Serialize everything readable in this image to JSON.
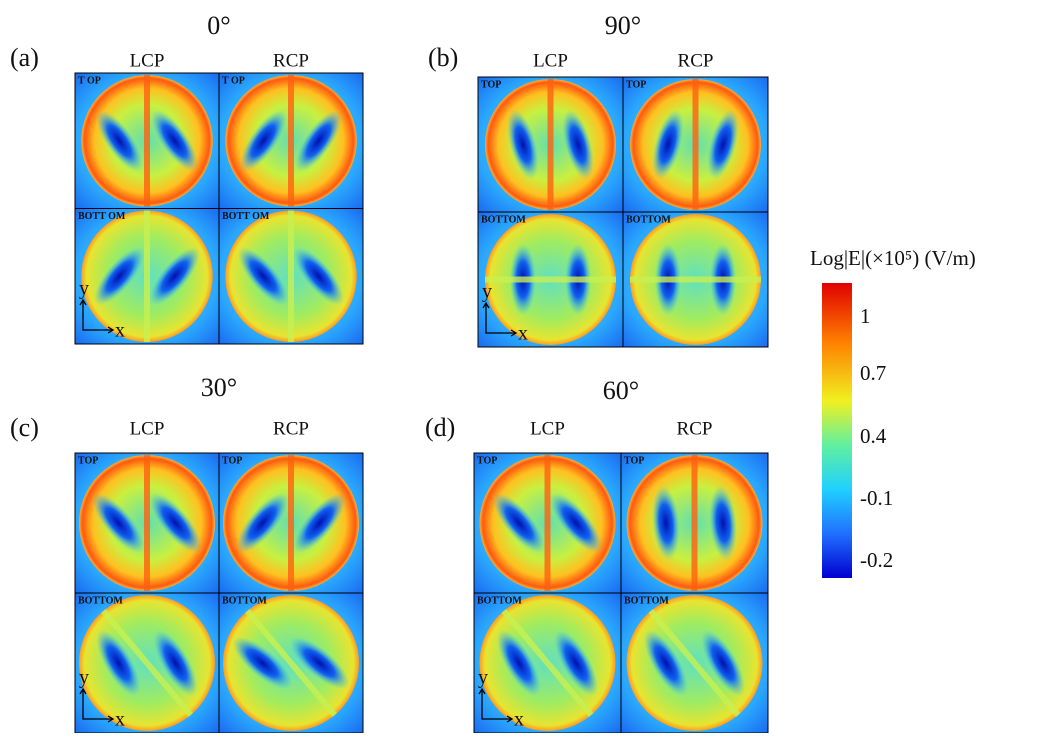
{
  "panels": [
    {
      "label": "(a)",
      "angle": "0°",
      "columns": [
        "LCP",
        "RCP"
      ],
      "tiles": [
        "T OP",
        "T OP",
        "BOTT OM",
        "BOTT OM"
      ],
      "y_axis": "y",
      "x_axis": "x"
    },
    {
      "label": "(b)",
      "angle": "90°",
      "columns": [
        "LCP",
        "RCP"
      ],
      "tiles": [
        "TOP",
        "TOP",
        "BOTTOM",
        "BOTTOM"
      ],
      "y_axis": "y",
      "x_axis": "x"
    },
    {
      "label": "(c)",
      "angle": "30°",
      "columns": [
        "LCP",
        "RCP"
      ],
      "tiles": [
        "TOP",
        "TOP",
        "BOTTOM",
        "BOTTOM"
      ],
      "y_axis": "y",
      "x_axis": "x"
    },
    {
      "label": "(d)",
      "angle": "60°",
      "columns": [
        "LCP",
        "RCP"
      ],
      "tiles": [
        "TOP",
        "TOP",
        "BOTTOM",
        "BOTTOM"
      ],
      "y_axis": "y",
      "x_axis": "x"
    }
  ],
  "colorbar": {
    "title": "Log|E|(×10⁵) (V/m)",
    "ticks": [
      "1",
      "0.7",
      "0.4",
      "-0.1",
      "-0.2"
    ]
  }
}
